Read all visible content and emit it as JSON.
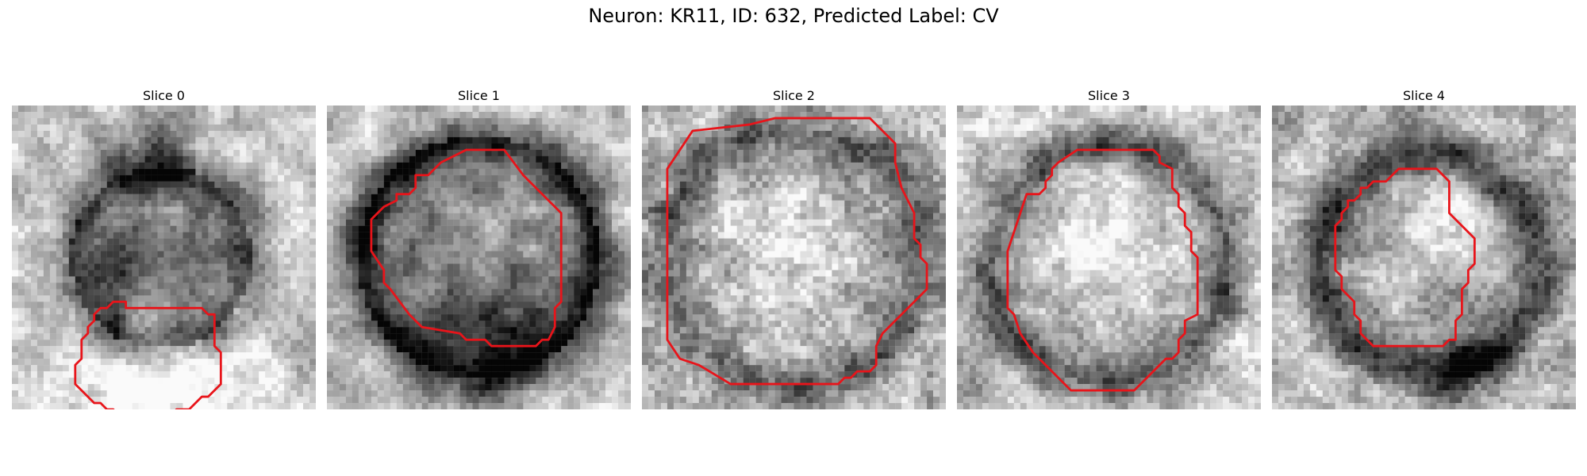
{
  "suptitle": "Neuron: KR11, ID: 632, Predicted Label: CV",
  "contour_color": "#e8141a",
  "slices": [
    {
      "title": "Slice 0",
      "center": [
        0.49,
        0.5
      ],
      "ring_radius": 0.3,
      "ring_depth": 0.32,
      "inner_value": 0.55,
      "outer_value": 0.78,
      "extra_dark": [
        [
          0.45,
          0.15,
          0.14
        ],
        [
          0.35,
          0.55,
          0.12
        ]
      ],
      "extra_light": [
        [
          0.65,
          0.9,
          0.22
        ],
        [
          0.35,
          0.95,
          0.18
        ]
      ],
      "noise": 0.1,
      "seed": 11,
      "contour": [
        [
          25,
          32
        ],
        [
          30,
          32
        ],
        [
          31,
          33
        ],
        [
          32,
          33
        ],
        [
          32,
          38
        ],
        [
          33,
          39
        ],
        [
          33,
          44
        ],
        [
          31,
          46
        ],
        [
          30,
          46
        ],
        [
          28,
          48
        ],
        [
          26,
          48
        ],
        [
          25,
          49
        ],
        [
          17,
          49
        ],
        [
          16,
          48
        ],
        [
          15,
          48
        ],
        [
          14,
          47
        ],
        [
          13,
          47
        ],
        [
          10,
          44
        ],
        [
          10,
          41
        ],
        [
          11,
          40
        ],
        [
          11,
          37
        ],
        [
          12,
          36
        ],
        [
          12,
          35
        ],
        [
          13,
          34
        ],
        [
          13,
          33
        ],
        [
          14,
          32
        ],
        [
          15,
          32
        ],
        [
          16,
          31
        ],
        [
          18,
          31
        ],
        [
          18,
          32
        ]
      ]
    },
    {
      "title": "Slice 1",
      "center": [
        0.5,
        0.5
      ],
      "ring_radius": 0.4,
      "ring_depth": 0.45,
      "inner_value": 0.48,
      "outer_value": 0.78,
      "extra_dark": [
        [
          0.55,
          0.75,
          0.18
        ]
      ],
      "extra_light": [
        [
          0.58,
          0.42,
          0.14
        ]
      ],
      "noise": 0.09,
      "seed": 22,
      "contour": [
        [
          28,
          7
        ],
        [
          31,
          11
        ],
        [
          35,
          15
        ],
        [
          37,
          17
        ],
        [
          37,
          31
        ],
        [
          36,
          32
        ],
        [
          36,
          35
        ],
        [
          35,
          37
        ],
        [
          34,
          37
        ],
        [
          33,
          38
        ],
        [
          26,
          38
        ],
        [
          25,
          37
        ],
        [
          22,
          37
        ],
        [
          21,
          36
        ],
        [
          15,
          35
        ],
        [
          14,
          34
        ],
        [
          13,
          33
        ],
        [
          10,
          29
        ],
        [
          9,
          28
        ],
        [
          9,
          26
        ],
        [
          7,
          23
        ],
        [
          7,
          18
        ],
        [
          8,
          17
        ],
        [
          9,
          16
        ],
        [
          11,
          15
        ],
        [
          11,
          14
        ],
        [
          13,
          14
        ],
        [
          14,
          13
        ],
        [
          14,
          11
        ],
        [
          16,
          11
        ],
        [
          18,
          9
        ],
        [
          20,
          8
        ],
        [
          22,
          7
        ]
      ]
    },
    {
      "title": "Slice 2",
      "center": [
        0.5,
        0.5
      ],
      "ring_radius": 0.43,
      "ring_depth": 0.32,
      "inner_value": 0.66,
      "outer_value": 0.74,
      "extra_dark": [],
      "extra_light": [
        [
          0.45,
          0.4,
          0.2
        ],
        [
          0.45,
          0.65,
          0.15
        ]
      ],
      "noise": 0.14,
      "seed": 33,
      "contour": [
        [
          8,
          4
        ],
        [
          4,
          10
        ],
        [
          4,
          37
        ],
        [
          6,
          40
        ],
        [
          9,
          41
        ],
        [
          14,
          44
        ],
        [
          31,
          44
        ],
        [
          32,
          43
        ],
        [
          33,
          43
        ],
        [
          34,
          42
        ],
        [
          36,
          42
        ],
        [
          37,
          41
        ],
        [
          37,
          38
        ],
        [
          38,
          36
        ],
        [
          40,
          34
        ],
        [
          41,
          33
        ],
        [
          43,
          31
        ],
        [
          45,
          29
        ],
        [
          45,
          25
        ],
        [
          44,
          24
        ],
        [
          44,
          22
        ],
        [
          43,
          21
        ],
        [
          43,
          17
        ],
        [
          41,
          13
        ],
        [
          40,
          9
        ],
        [
          40,
          6
        ],
        [
          37,
          3
        ],
        [
          36,
          2
        ],
        [
          21,
          2
        ],
        [
          17,
          3
        ]
      ]
    },
    {
      "title": "Slice 3",
      "center": [
        0.5,
        0.52
      ],
      "ring_radius": 0.4,
      "ring_depth": 0.42,
      "inner_value": 0.72,
      "outer_value": 0.82,
      "extra_dark": [
        [
          0.05,
          0.88,
          0.1
        ]
      ],
      "extra_light": [
        [
          0.45,
          0.45,
          0.2
        ]
      ],
      "noise": 0.12,
      "seed": 44,
      "contour": [
        [
          11,
          14
        ],
        [
          10,
          17
        ],
        [
          9,
          20
        ],
        [
          8,
          23
        ],
        [
          8,
          32
        ],
        [
          9,
          33
        ],
        [
          10,
          36
        ],
        [
          12,
          39
        ],
        [
          13,
          40
        ],
        [
          14,
          41
        ],
        [
          16,
          43
        ],
        [
          18,
          45
        ],
        [
          23,
          45
        ],
        [
          24,
          45
        ],
        [
          28,
          45
        ],
        [
          30,
          43
        ],
        [
          32,
          41
        ],
        [
          33,
          40
        ],
        [
          34,
          40
        ],
        [
          35,
          39
        ],
        [
          35,
          37
        ],
        [
          36,
          36
        ],
        [
          36,
          34
        ],
        [
          38,
          33
        ],
        [
          38,
          24
        ],
        [
          37,
          23
        ],
        [
          37,
          20
        ],
        [
          36,
          19
        ],
        [
          36,
          17
        ],
        [
          35,
          16
        ],
        [
          35,
          14
        ],
        [
          34,
          13
        ],
        [
          34,
          10
        ],
        [
          32,
          9
        ],
        [
          32,
          8
        ],
        [
          31,
          7
        ],
        [
          19,
          7
        ],
        [
          16,
          9
        ],
        [
          15,
          10
        ],
        [
          15,
          11
        ],
        [
          14,
          12
        ],
        [
          14,
          13
        ],
        [
          13,
          14
        ]
      ]
    },
    {
      "title": "Slice 4",
      "center": [
        0.52,
        0.52
      ],
      "ring_radius": 0.36,
      "ring_depth": 0.45,
      "inner_value": 0.7,
      "outer_value": 0.7,
      "extra_dark": [
        [
          0.6,
          0.82,
          0.14
        ]
      ],
      "extra_light": [
        [
          0.55,
          0.38,
          0.16
        ]
      ],
      "noise": 0.12,
      "seed": 55,
      "contour": [
        [
          19,
          11
        ],
        [
          20,
          10
        ],
        [
          26,
          10
        ],
        [
          28,
          12
        ],
        [
          28,
          17
        ],
        [
          29,
          18
        ],
        [
          30,
          19
        ],
        [
          31,
          20
        ],
        [
          32,
          21
        ],
        [
          32,
          25
        ],
        [
          31,
          26
        ],
        [
          31,
          28
        ],
        [
          30,
          29
        ],
        [
          30,
          33
        ],
        [
          29,
          34
        ],
        [
          29,
          37
        ],
        [
          28,
          37
        ],
        [
          27,
          38
        ],
        [
          16,
          38
        ],
        [
          14,
          36
        ],
        [
          14,
          34
        ],
        [
          13,
          33
        ],
        [
          13,
          31
        ],
        [
          11,
          29
        ],
        [
          11,
          27
        ],
        [
          10,
          26
        ],
        [
          10,
          19
        ],
        [
          11,
          18
        ],
        [
          11,
          17
        ],
        [
          12,
          16
        ],
        [
          12,
          15
        ],
        [
          13,
          15
        ],
        [
          14,
          14
        ],
        [
          14,
          13
        ],
        [
          15,
          13
        ],
        [
          16,
          12
        ],
        [
          18,
          12
        ],
        [
          19,
          11
        ]
      ]
    }
  ]
}
